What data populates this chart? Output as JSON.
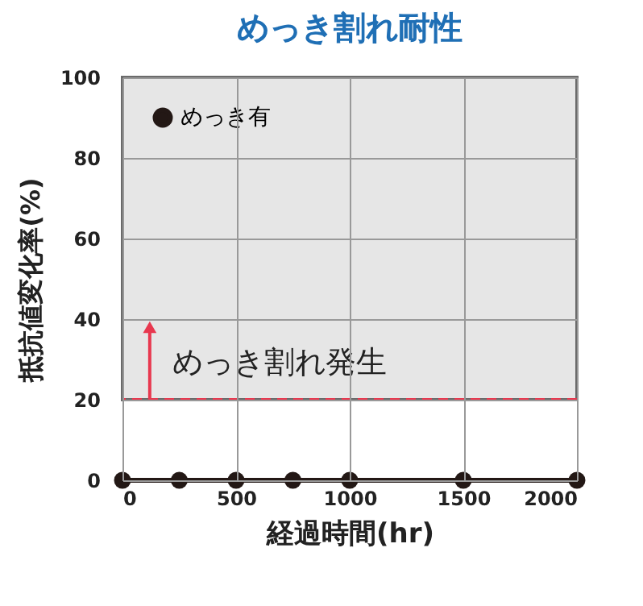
{
  "chart_data": {
    "type": "line",
    "title": "めっき割れ耐性",
    "xlabel": "経過時間(hr)",
    "ylabel": "抵抗値変化率(%)",
    "x": [
      0,
      250,
      500,
      750,
      1000,
      1500,
      2000
    ],
    "series": [
      {
        "name": "めっき有",
        "color": "#231815",
        "values": [
          0,
          0,
          0,
          0,
          0,
          0,
          0
        ]
      }
    ],
    "xlim": [
      0,
      2000
    ],
    "xticks": [
      0,
      500,
      1000,
      1500,
      2000
    ],
    "ylim": [
      0,
      100
    ],
    "yticks": [
      0,
      20,
      40,
      60,
      80,
      100
    ],
    "grid": true,
    "legend": "top left",
    "marker": "circle",
    "line_style": "solid",
    "bands": [
      {
        "axis": "y",
        "from": 20,
        "to": 100,
        "color": "#e6e6e6"
      }
    ],
    "ref_lines": [
      {
        "axis": "y",
        "value": 20,
        "color": "#e8384f",
        "line_style": "dashed"
      }
    ],
    "annotations": [
      {
        "text": "めっき割れ発生",
        "x": 120,
        "y": 38
      }
    ]
  }
}
